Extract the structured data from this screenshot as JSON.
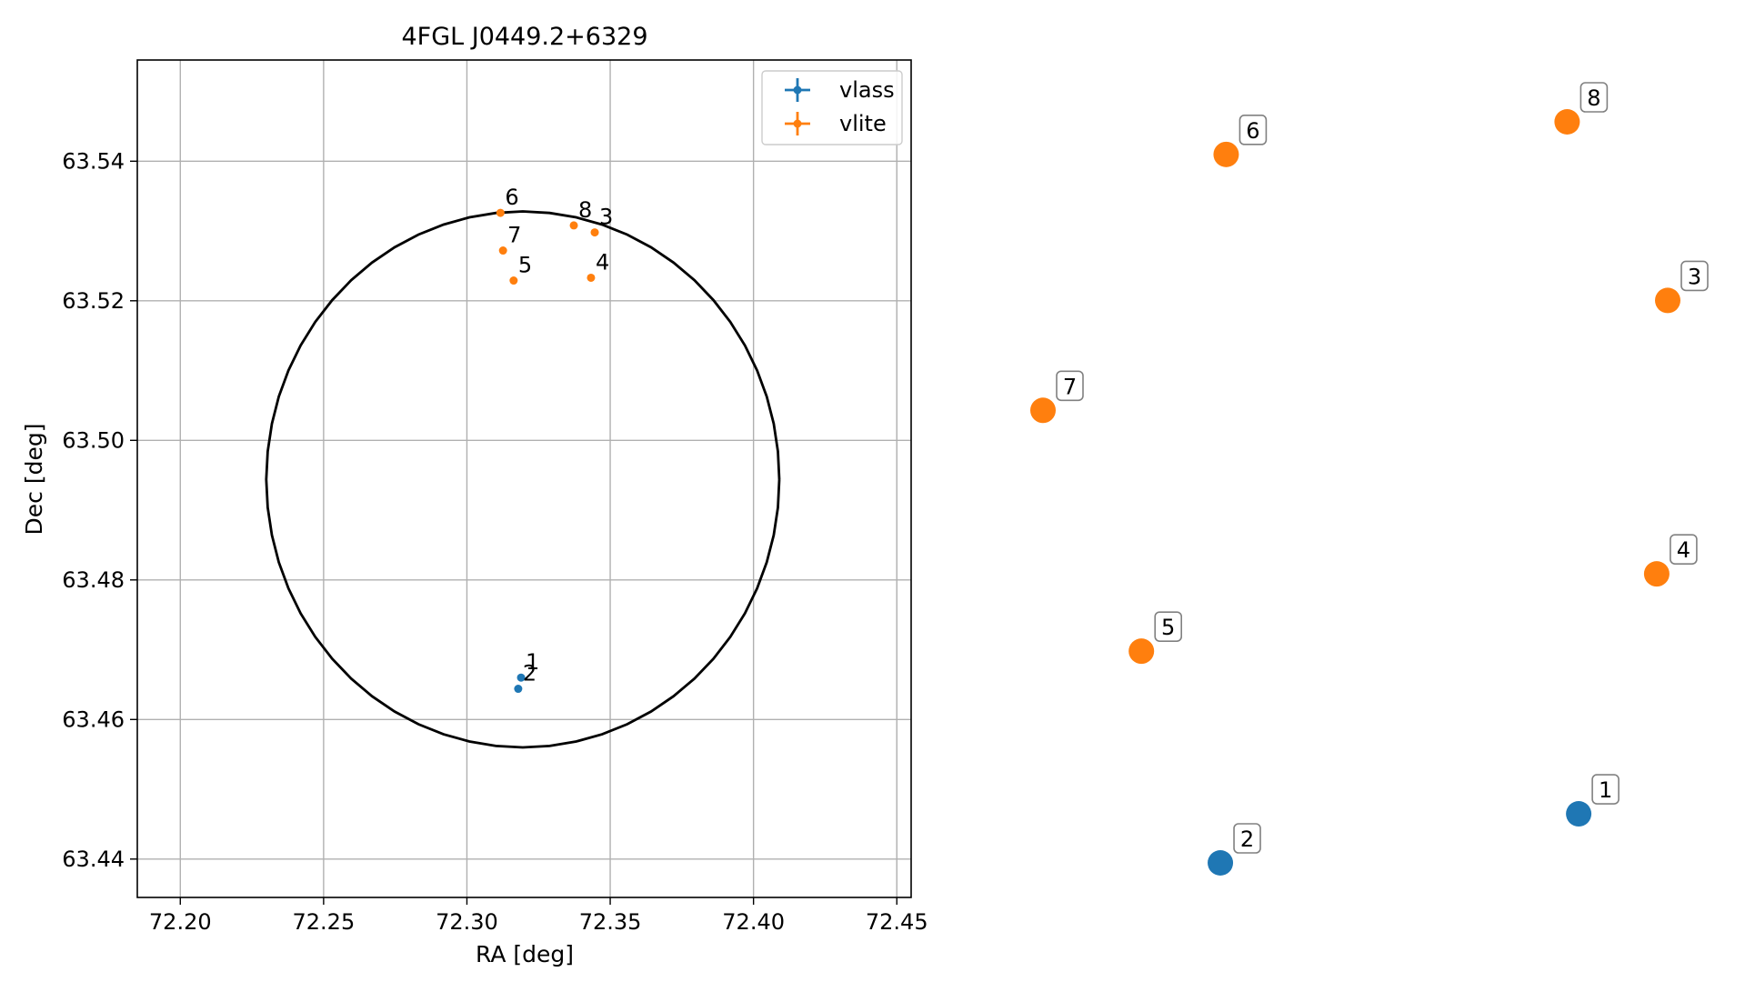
{
  "chart_data": [
    {
      "type": "scatter",
      "title": "4FGL J0449.2+6329",
      "xlabel": "RA [deg]",
      "ylabel": "Dec [deg]",
      "xlim": [
        72.185,
        72.455
      ],
      "ylim": [
        63.4345,
        63.5545
      ],
      "xticks": [
        72.2,
        72.25,
        72.3,
        72.35,
        72.4,
        72.45
      ],
      "xtick_labels": [
        "72.20",
        "72.25",
        "72.30",
        "72.35",
        "72.40",
        "72.45"
      ],
      "yticks": [
        63.44,
        63.46,
        63.48,
        63.5,
        63.52,
        63.54
      ],
      "ytick_labels": [
        "63.44",
        "63.46",
        "63.48",
        "63.50",
        "63.52",
        "63.54"
      ],
      "grid": true,
      "legend": "top-right",
      "circle": {
        "ra_center": 72.3195,
        "dec_center": 63.4944,
        "ra_radius": 0.0895,
        "dec_radius": 0.0384,
        "color": "#000000"
      },
      "series": [
        {
          "name": "vlass",
          "color": "#1f77b4",
          "points": [
            {
              "label": "1",
              "x": 72.3189,
              "y": 63.466
            },
            {
              "label": "2",
              "x": 72.3179,
              "y": 63.4644
            }
          ]
        },
        {
          "name": "vlite",
          "color": "#ff7f0e",
          "points": [
            {
              "label": "3",
              "x": 72.3446,
              "y": 63.5298
            },
            {
              "label": "4",
              "x": 72.3433,
              "y": 63.5233
            },
            {
              "label": "5",
              "x": 72.3163,
              "y": 63.5229
            },
            {
              "label": "6",
              "x": 72.3117,
              "y": 63.5326
            },
            {
              "label": "7",
              "x": 72.3126,
              "y": 63.5272
            },
            {
              "label": "8",
              "x": 72.3373,
              "y": 63.5308
            }
          ]
        }
      ]
    },
    {
      "type": "scatter",
      "grid": false,
      "axes": false,
      "series": [
        {
          "name": "vlass",
          "color": "#1f77b4",
          "points": [
            {
              "label": "1",
              "x": 0.8575,
              "y": 0.0662
            },
            {
              "label": "2",
              "x": 0.2839,
              "y": 0.0
            }
          ]
        },
        {
          "name": "vlite",
          "color": "#ff7f0e",
          "points": [
            {
              "label": "3",
              "x": 1.0,
              "y": 0.759
            },
            {
              "label": "4",
              "x": 0.9824,
              "y": 0.39
            },
            {
              "label": "5",
              "x": 0.1575,
              "y": 0.2857
            },
            {
              "label": "6",
              "x": 0.2932,
              "y": 0.956
            },
            {
              "label": "7",
              "x": 0.0,
              "y": 0.6107
            },
            {
              "label": "8",
              "x": 0.839,
              "y": 1.0
            }
          ]
        }
      ]
    }
  ]
}
